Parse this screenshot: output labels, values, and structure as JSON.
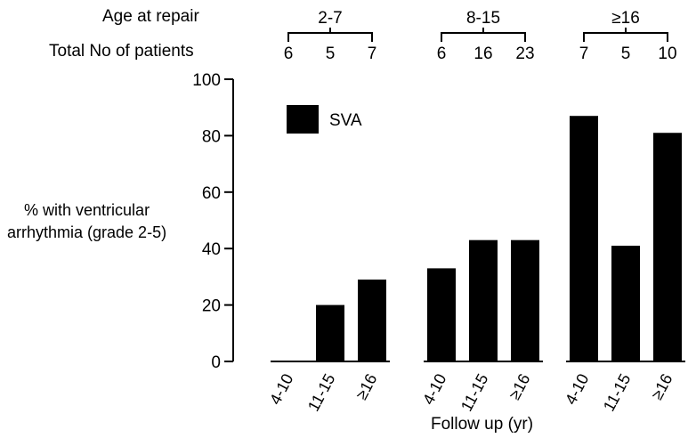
{
  "chart_data": {
    "type": "bar",
    "header": {
      "age_label": "Age at repair",
      "patients_label": "Total No of patients"
    },
    "groups": [
      {
        "age": "2-7",
        "categories": [
          "4-10",
          "11-15",
          "≥16"
        ],
        "patients": [
          "6",
          "5",
          "7"
        ],
        "values": [
          0,
          20,
          29
        ]
      },
      {
        "age": "8-15",
        "categories": [
          "4-10",
          "11-15",
          "≥16"
        ],
        "patients": [
          "6",
          "16",
          "23"
        ],
        "values": [
          33,
          43,
          43
        ]
      },
      {
        "age": "≥16",
        "categories": [
          "4-10",
          "11-15",
          "≥16"
        ],
        "patients": [
          "7",
          "5",
          "10"
        ],
        "values": [
          87,
          41,
          81
        ]
      }
    ],
    "series": [
      {
        "name": "SVA",
        "color": "#000000"
      }
    ],
    "ylabel_line1": "% with ventricular",
    "ylabel_line2": "arrhythmia (grade 2-5)",
    "xlabel": "Follow up (yr)",
    "ylim": [
      0,
      100
    ],
    "yticks": [
      0,
      20,
      40,
      60,
      80,
      100
    ],
    "legend_position": "top-left",
    "grid": false
  }
}
